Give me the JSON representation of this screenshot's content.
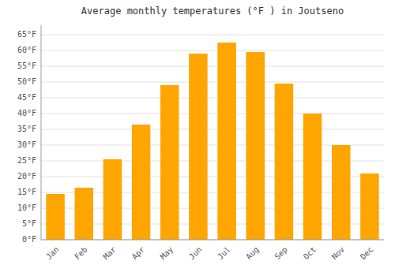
{
  "chart_data": {
    "type": "bar",
    "title": "Average monthly temperatures (°F ) in Joutseno",
    "categories": [
      "Jan",
      "Feb",
      "Mar",
      "Apr",
      "May",
      "Jun",
      "Jul",
      "Aug",
      "Sep",
      "Oct",
      "Nov",
      "Dec"
    ],
    "values": [
      14.5,
      16.5,
      25.5,
      36.5,
      49.0,
      59.0,
      62.5,
      59.5,
      49.5,
      40.0,
      30.0,
      21.0
    ],
    "color": "#FFA500",
    "ylim": [
      0,
      68
    ],
    "yticks": [
      {
        "value": 0,
        "label": "0°F"
      },
      {
        "value": 5,
        "label": "5°F"
      },
      {
        "value": 10,
        "label": "10°F"
      },
      {
        "value": 15,
        "label": "15°F"
      },
      {
        "value": 20,
        "label": "20°F"
      },
      {
        "value": 25,
        "label": "25°F"
      },
      {
        "value": 30,
        "label": "30°F"
      },
      {
        "value": 35,
        "label": "35°F"
      },
      {
        "value": 40,
        "label": "40°F"
      },
      {
        "value": 45,
        "label": "45°F"
      },
      {
        "value": 50,
        "label": "50°F"
      },
      {
        "value": 55,
        "label": "55°F"
      },
      {
        "value": 60,
        "label": "60°F"
      },
      {
        "value": 65,
        "label": "65°F"
      }
    ],
    "grid": true
  }
}
